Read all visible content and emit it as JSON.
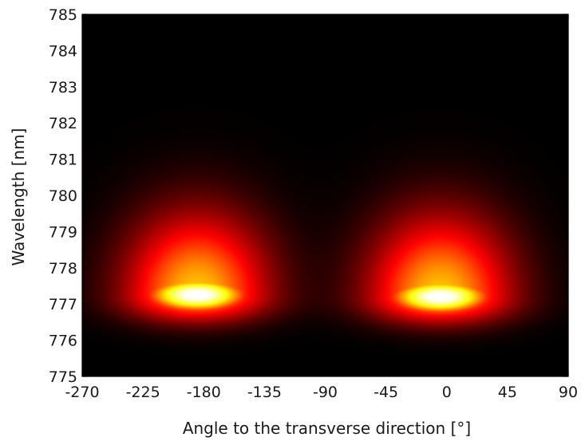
{
  "chart_data": {
    "type": "heatmap",
    "title": "",
    "xlabel": "Angle to the transverse direction [°]",
    "ylabel": "Wavelength [nm]",
    "xlim": [
      -270,
      90
    ],
    "ylim": [
      775,
      785
    ],
    "x_ticks": [
      "-270",
      "-225",
      "-180",
      "-135",
      "-90",
      "-45",
      "0",
      "45",
      "90"
    ],
    "y_ticks": [
      "775",
      "776",
      "777",
      "778",
      "779",
      "780",
      "781",
      "782",
      "783",
      "784",
      "785"
    ],
    "colormap": "hot (black-red-yellow-white)",
    "background_color": "#000000",
    "grid": false,
    "hotspots": [
      {
        "angle_center": -185,
        "wavelength_center": 777.25,
        "peak_intensity": 1.0
      },
      {
        "angle_center": -5,
        "wavelength_center": 777.2,
        "peak_intensity": 1.0
      }
    ]
  }
}
